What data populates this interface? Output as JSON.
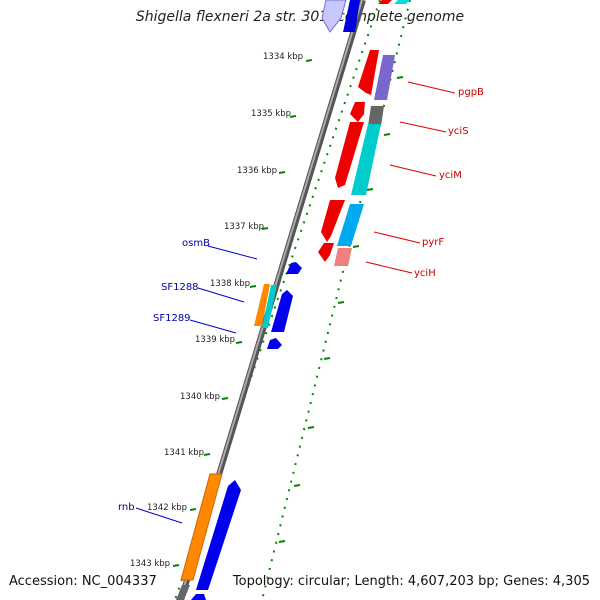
{
  "title": "Shigella flexneri 2a str. 301, complete genome",
  "accession_text": "Accession: NC_004337",
  "topology_text": "Topology: circular; Length: 4,607,203 bp; Genes: 4,305",
  "colors": {
    "backbone": "#7a7a7a",
    "tick": "#008800",
    "left_label": "#0000aa",
    "right_label": "#c80000"
  },
  "ticks": [
    "1334 kbp",
    "1335 kbp",
    "1336 kbp",
    "1337 kbp",
    "1338 kbp",
    "1339 kbp",
    "1340 kbp",
    "1341 kbp",
    "1342 kbp",
    "1343 kbp"
  ],
  "left_genes": [
    "osmB",
    "SF1288",
    "SF1289",
    "rnb"
  ],
  "right_genes": [
    "pgpB",
    "yciS",
    "yciM",
    "pyrF",
    "yciH"
  ]
}
